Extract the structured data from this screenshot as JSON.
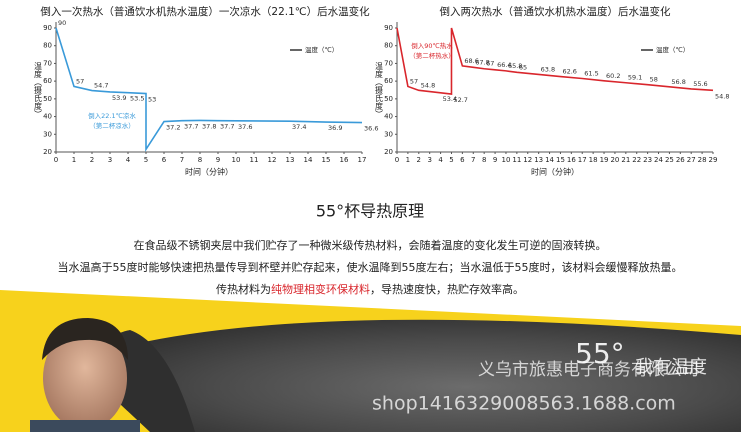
{
  "chart_data": [
    {
      "type": "line",
      "title": "倒入一次热水（普通饮水机热水温度）一次凉水（22.1℃）后水温变化",
      "xlabel": "时间（分钟）",
      "ylabel": "温度（摄氏度）",
      "xlim": [
        0,
        17
      ],
      "ylim": [
        20,
        90
      ],
      "xticks": [
        0,
        1,
        2,
        3,
        4,
        5,
        6,
        7,
        8,
        9,
        10,
        11,
        12,
        13,
        14,
        15,
        16,
        17
      ],
      "yticks": [
        20,
        30,
        40,
        50,
        60,
        70,
        80,
        90
      ],
      "legend": "upper right",
      "x": [
        0,
        1,
        2,
        3,
        4,
        5,
        5,
        6,
        7,
        8,
        9,
        10,
        13,
        15,
        17
      ],
      "series": [
        {
          "name": "温度（℃）",
          "color": "#3a9ad9",
          "values": [
            90,
            57,
            54.7,
            53.9,
            53.5,
            53,
            21.5,
            37.2,
            37.7,
            37.8,
            37.7,
            37.6,
            37.4,
            36.9,
            36.6
          ],
          "value_labels": [
            "90",
            "57",
            "54.7",
            "53.9",
            "53.5",
            "53",
            null,
            "37.2",
            "37.7",
            "37.8",
            "37.7",
            "37.6",
            "37.4",
            "36.9",
            "36.6"
          ]
        }
      ],
      "annotation": [
        "倒入22.1℃凉水",
        "（第二杯凉水）"
      ]
    },
    {
      "type": "line",
      "title": "倒入两次热水（普通饮水机热水温度）后水温变化",
      "xlabel": "时间（分钟）",
      "ylabel": "温度（摄氏度）",
      "xlim": [
        0,
        29
      ],
      "ylim": [
        20,
        90
      ],
      "xticks": [
        0,
        1,
        2,
        3,
        4,
        5,
        6,
        7,
        8,
        9,
        10,
        11,
        12,
        13,
        14,
        15,
        16,
        17,
        18,
        19,
        20,
        21,
        22,
        23,
        24,
        25,
        26,
        27,
        28,
        29
      ],
      "yticks": [
        20,
        30,
        40,
        50,
        60,
        70,
        80,
        90
      ],
      "legend": "upper right",
      "x": [
        0,
        1,
        2,
        4,
        5,
        5,
        6,
        7,
        8,
        9,
        10,
        11,
        13,
        15,
        17,
        19,
        21,
        23,
        25,
        27,
        29
      ],
      "series": [
        {
          "name": "温度（℃）",
          "color": "#d9262c",
          "values": [
            90,
            57,
            54.8,
            53.4,
            52.7,
            90,
            68.6,
            67.8,
            67,
            66.4,
            65.8,
            65,
            63.8,
            62.6,
            61.5,
            60.2,
            59.1,
            58,
            56.8,
            55.6,
            54.8
          ],
          "value_labels": [
            null,
            "57",
            "54.8",
            "53.4",
            "52.7",
            null,
            "68.6",
            "67.8",
            "67",
            "66.4",
            "65.8",
            "65",
            "63.8",
            "62.6",
            "61.5",
            "60.2",
            "59.1",
            "58",
            "56.8",
            "55.6",
            "54.8"
          ]
        }
      ],
      "annotation": [
        "倒入90℃热水",
        "（第二杯热水）"
      ]
    }
  ],
  "principle": {
    "title": "55°杯导热原理",
    "paragraphs": [
      [
        "在食品级不锈钢夹层中我们贮存了一种微米级传热材料，会随着温度的变化发生可逆的固液转换。"
      ],
      [
        "当水温高于55度时能够快速把热量传导到杯壁并贮存起来，使水温降到55度左右；当水温低于55度时，该材料会缓慢释放热量。"
      ],
      [
        "传热材料为",
        "纯物理相变环保材料",
        "，导热速度快，热贮存效率高。"
      ]
    ]
  },
  "banner": {
    "logo": "55°",
    "slogan": "我有温度",
    "watermark_company": "义乌市旅惠电子商务有限公司",
    "watermark_url": "shop1416329008563.1688.com"
  }
}
